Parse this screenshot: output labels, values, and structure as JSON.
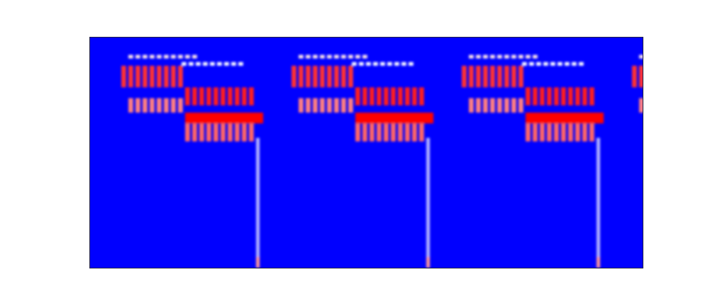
{
  "colors": {
    "background": "#0000ff",
    "hot": "#ff0000",
    "mid": "#ffffff",
    "frame": "#222244"
  },
  "chart_data": {
    "type": "heatmap",
    "colormap": [
      "#0000ff",
      "#ffffff",
      "#ff0000"
    ],
    "axes_visible": false,
    "grid": false,
    "legend": "none",
    "repeats": 4,
    "cols_per_repeat": 48,
    "rows": 64,
    "blocks": [
      {
        "row_start": 5,
        "row_end": 6,
        "col_start": 11,
        "col_end": 30,
        "value": 0.55,
        "stripe": true
      },
      {
        "row_start": 7,
        "row_end": 8,
        "col_start": 26,
        "col_end": 44,
        "value": 0.5,
        "stripe": true
      },
      {
        "row_start": 8,
        "row_end": 14,
        "col_start": 9,
        "col_end": 27,
        "value": 0.9,
        "stripe": true
      },
      {
        "row_start": 14,
        "row_end": 19,
        "col_start": 27,
        "col_end": 46,
        "value": 0.95,
        "stripe": true
      },
      {
        "row_start": 17,
        "row_end": 21,
        "col_start": 11,
        "col_end": 27,
        "value": 0.75,
        "stripe": true
      },
      {
        "row_start": 21,
        "row_end": 24,
        "col_start": 27,
        "col_end": 49,
        "value": 1.0,
        "stripe": false
      },
      {
        "row_start": 24,
        "row_end": 29,
        "col_start": 27,
        "col_end": 46,
        "value": 0.8,
        "stripe": true
      },
      {
        "row_start": 28,
        "row_end": 64,
        "col_start": 47,
        "col_end": 48,
        "value": 0.35,
        "stripe": false
      },
      {
        "row_start": 61,
        "row_end": 64,
        "col_start": 47,
        "col_end": 48,
        "value": 0.7,
        "stripe": false
      }
    ]
  }
}
